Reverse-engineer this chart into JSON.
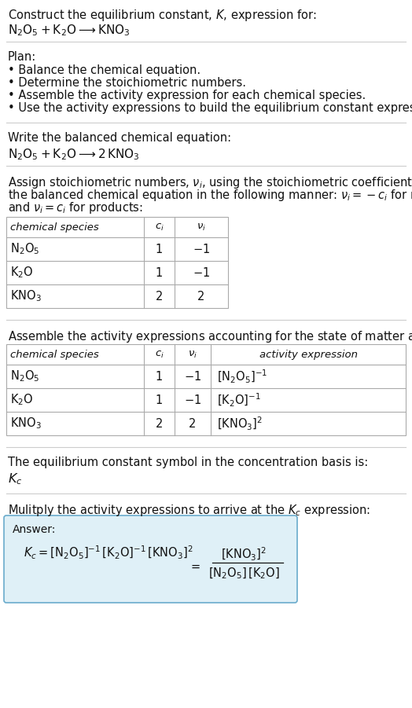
{
  "title_line1": "Construct the equilibrium constant, $K$, expression for:",
  "title_line2": "$\\mathrm{N_2O_5 + K_2O \\longrightarrow KNO_3}$",
  "plan_header": "Plan:",
  "plan_items": [
    "• Balance the chemical equation.",
    "• Determine the stoichiometric numbers.",
    "• Assemble the activity expression for each chemical species.",
    "• Use the activity expressions to build the equilibrium constant expression."
  ],
  "balanced_header": "Write the balanced chemical equation:",
  "balanced_eq": "$\\mathrm{N_2O_5 + K_2O \\longrightarrow 2\\,KNO_3}$",
  "stoich_lines": [
    "Assign stoichiometric numbers, $\\nu_i$, using the stoichiometric coefficients, $c_i$, from",
    "the balanced chemical equation in the following manner: $\\nu_i = -c_i$ for reactants",
    "and $\\nu_i = c_i$ for products:"
  ],
  "table1_rows": [
    [
      "$\\mathrm{N_2O_5}$",
      "1",
      "$-1$"
    ],
    [
      "$\\mathrm{K_2O}$",
      "1",
      "$-1$"
    ],
    [
      "$\\mathrm{KNO_3}$",
      "2",
      "2"
    ]
  ],
  "assemble_header": "Assemble the activity expressions accounting for the state of matter and $\\nu_i$:",
  "table2_rows": [
    [
      "$\\mathrm{N_2O_5}$",
      "1",
      "$-1$",
      "$[\\mathrm{N_2O_5}]^{-1}$"
    ],
    [
      "$\\mathrm{K_2O}$",
      "1",
      "$-1$",
      "$[\\mathrm{K_2O}]^{-1}$"
    ],
    [
      "$\\mathrm{KNO_3}$",
      "2",
      "2",
      "$[\\mathrm{KNO_3}]^{2}$"
    ]
  ],
  "kc_header": "The equilibrium constant symbol in the concentration basis is:",
  "kc_symbol": "$K_c$",
  "multiply_header": "Mulitply the activity expressions to arrive at the $K_c$ expression:",
  "answer_label": "Answer:",
  "bg_color": "#ffffff",
  "answer_box_bg": "#dff0f7",
  "answer_box_border": "#6aabcc",
  "sep_color": "#cccccc",
  "table_color": "#aaaaaa",
  "font_size": 10.5
}
